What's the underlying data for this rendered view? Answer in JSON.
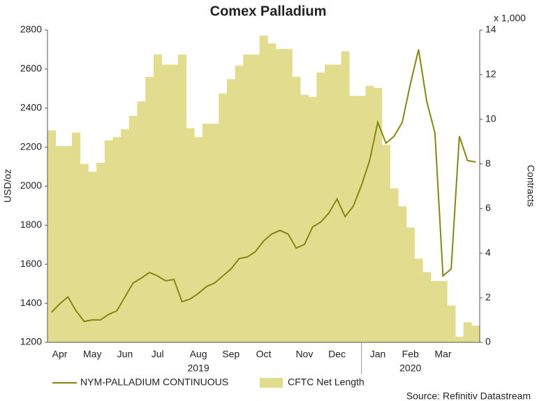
{
  "chart_data": {
    "type": "line_area",
    "title": "Comex Palladium",
    "ylabel": "USD/oz",
    "y2label": "Contracts",
    "y2unit": "x 1,000",
    "source": "Source: Refinitiv Datastream",
    "categories": [
      null,
      "Apr",
      null,
      null,
      null,
      "May",
      null,
      null,
      null,
      "Jun",
      null,
      null,
      null,
      "Jul",
      null,
      null,
      null,
      null,
      "Aug",
      null,
      null,
      null,
      "Sep",
      null,
      null,
      null,
      "Oct",
      null,
      null,
      null,
      null,
      "Nov",
      null,
      null,
      null,
      "Dec",
      null,
      null,
      null,
      null,
      "Jan",
      null,
      null,
      null,
      "Feb",
      null,
      null,
      null,
      "Mar",
      null,
      null,
      null,
      null
    ],
    "x_groups": [
      {
        "label": "2019",
        "months": 9
      },
      {
        "label": "2020",
        "months": 3
      }
    ],
    "series": [
      {
        "name": "NYM-PALLADIUM CONTINUOUS",
        "color": "#868612",
        "axis": "y",
        "kind": "line",
        "values": [
          1354,
          1397,
          1433,
          1361,
          1307,
          1315,
          1315,
          1343,
          1361,
          1433,
          1504,
          1529,
          1558,
          1540,
          1515,
          1522,
          1408,
          1422,
          1451,
          1486,
          1504,
          1540,
          1576,
          1629,
          1637,
          1665,
          1719,
          1755,
          1773,
          1755,
          1683,
          1701,
          1791,
          1816,
          1862,
          1934,
          1844,
          1898,
          2005,
          2131,
          2327,
          2220,
          2256,
          2327,
          2524,
          2700,
          2435,
          2274,
          1540,
          1576,
          2256,
          2131,
          2124
        ]
      },
      {
        "name": "CFTC Net Length",
        "color": "#e2dc8e",
        "axis": "y2",
        "kind": "area",
        "values": [
          9.5,
          8.8,
          8.8,
          9.4,
          8.0,
          7.65,
          8.05,
          9.05,
          9.2,
          9.55,
          10.15,
          10.8,
          11.9,
          12.9,
          12.45,
          12.45,
          12.9,
          9.6,
          9.2,
          9.8,
          9.8,
          11.15,
          11.8,
          12.4,
          12.9,
          12.9,
          13.75,
          13.4,
          13.15,
          13.15,
          11.9,
          11.1,
          11.0,
          12.1,
          12.45,
          12.45,
          13.05,
          11.05,
          11.05,
          11.5,
          11.4,
          8.85,
          6.9,
          6.1,
          5.15,
          3.75,
          3.15,
          2.75,
          2.75,
          1.65,
          0.25,
          0.9,
          0.75
        ]
      }
    ],
    "ylim": [
      1200,
      2800
    ],
    "yticks": [
      1200,
      1400,
      1600,
      1800,
      2000,
      2200,
      2400,
      2600,
      2800
    ],
    "y2lim": [
      0,
      14
    ],
    "y2ticks": [
      0,
      2,
      4,
      6,
      8,
      10,
      12,
      14
    ],
    "grid": false,
    "legend": "bottom"
  }
}
